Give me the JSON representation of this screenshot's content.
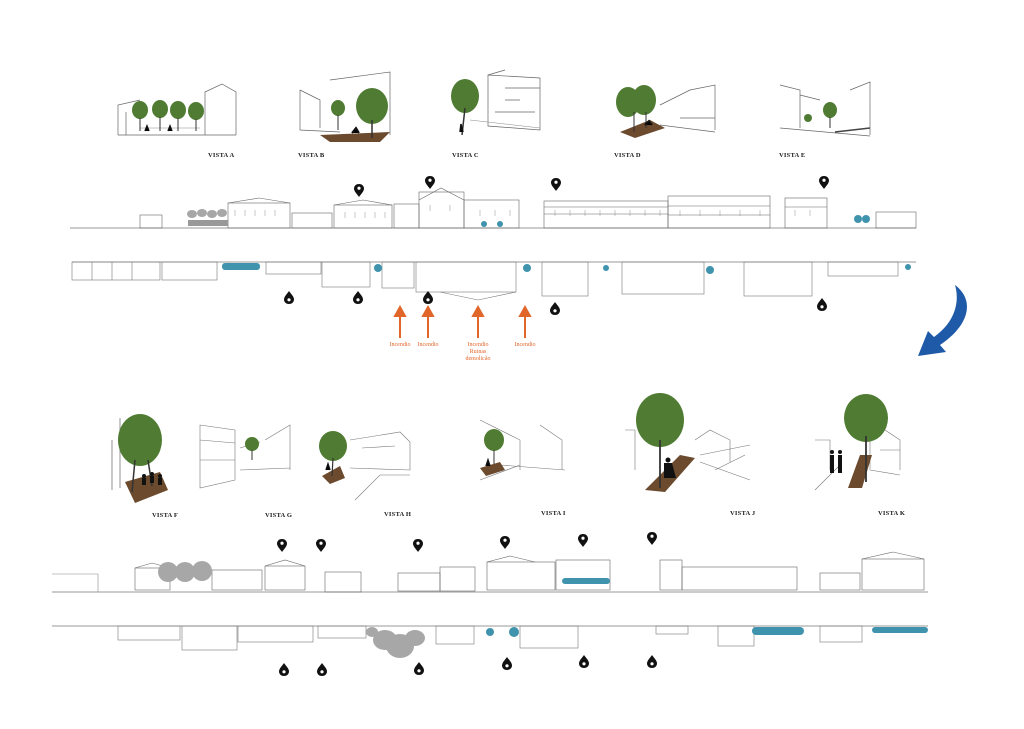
{
  "views_top": [
    "VISTA A",
    "VISTA B",
    "VISTA C",
    "VISTA D",
    "VISTA E"
  ],
  "views_bottom": [
    "VISTA F",
    "VISTA G",
    "VISTA H",
    "VISTA I",
    "VISTA J",
    "VISTA K"
  ],
  "annotations": {
    "incendio_1": "Incendio",
    "incendio_2": "Incendio",
    "incendio_3_line1": "Incendio",
    "incendio_3_line2": "Ruinas",
    "incendio_3_line3": "demolicão",
    "incendio_4": "Incendio"
  },
  "colors": {
    "tree": "#4f7c32",
    "tree_dark": "#3b5f24",
    "water_blue": "#3f93ad",
    "arrow_orange": "#e0662a",
    "transition_arrow": "#1f5aa8",
    "ground_brown": "#6b4a2e",
    "grey_tree": "#a7a7a7",
    "line": "#555555"
  },
  "icons": [
    "location-pin-icon",
    "tree-icon",
    "curved-arrow-icon",
    "up-arrow-icon"
  ]
}
